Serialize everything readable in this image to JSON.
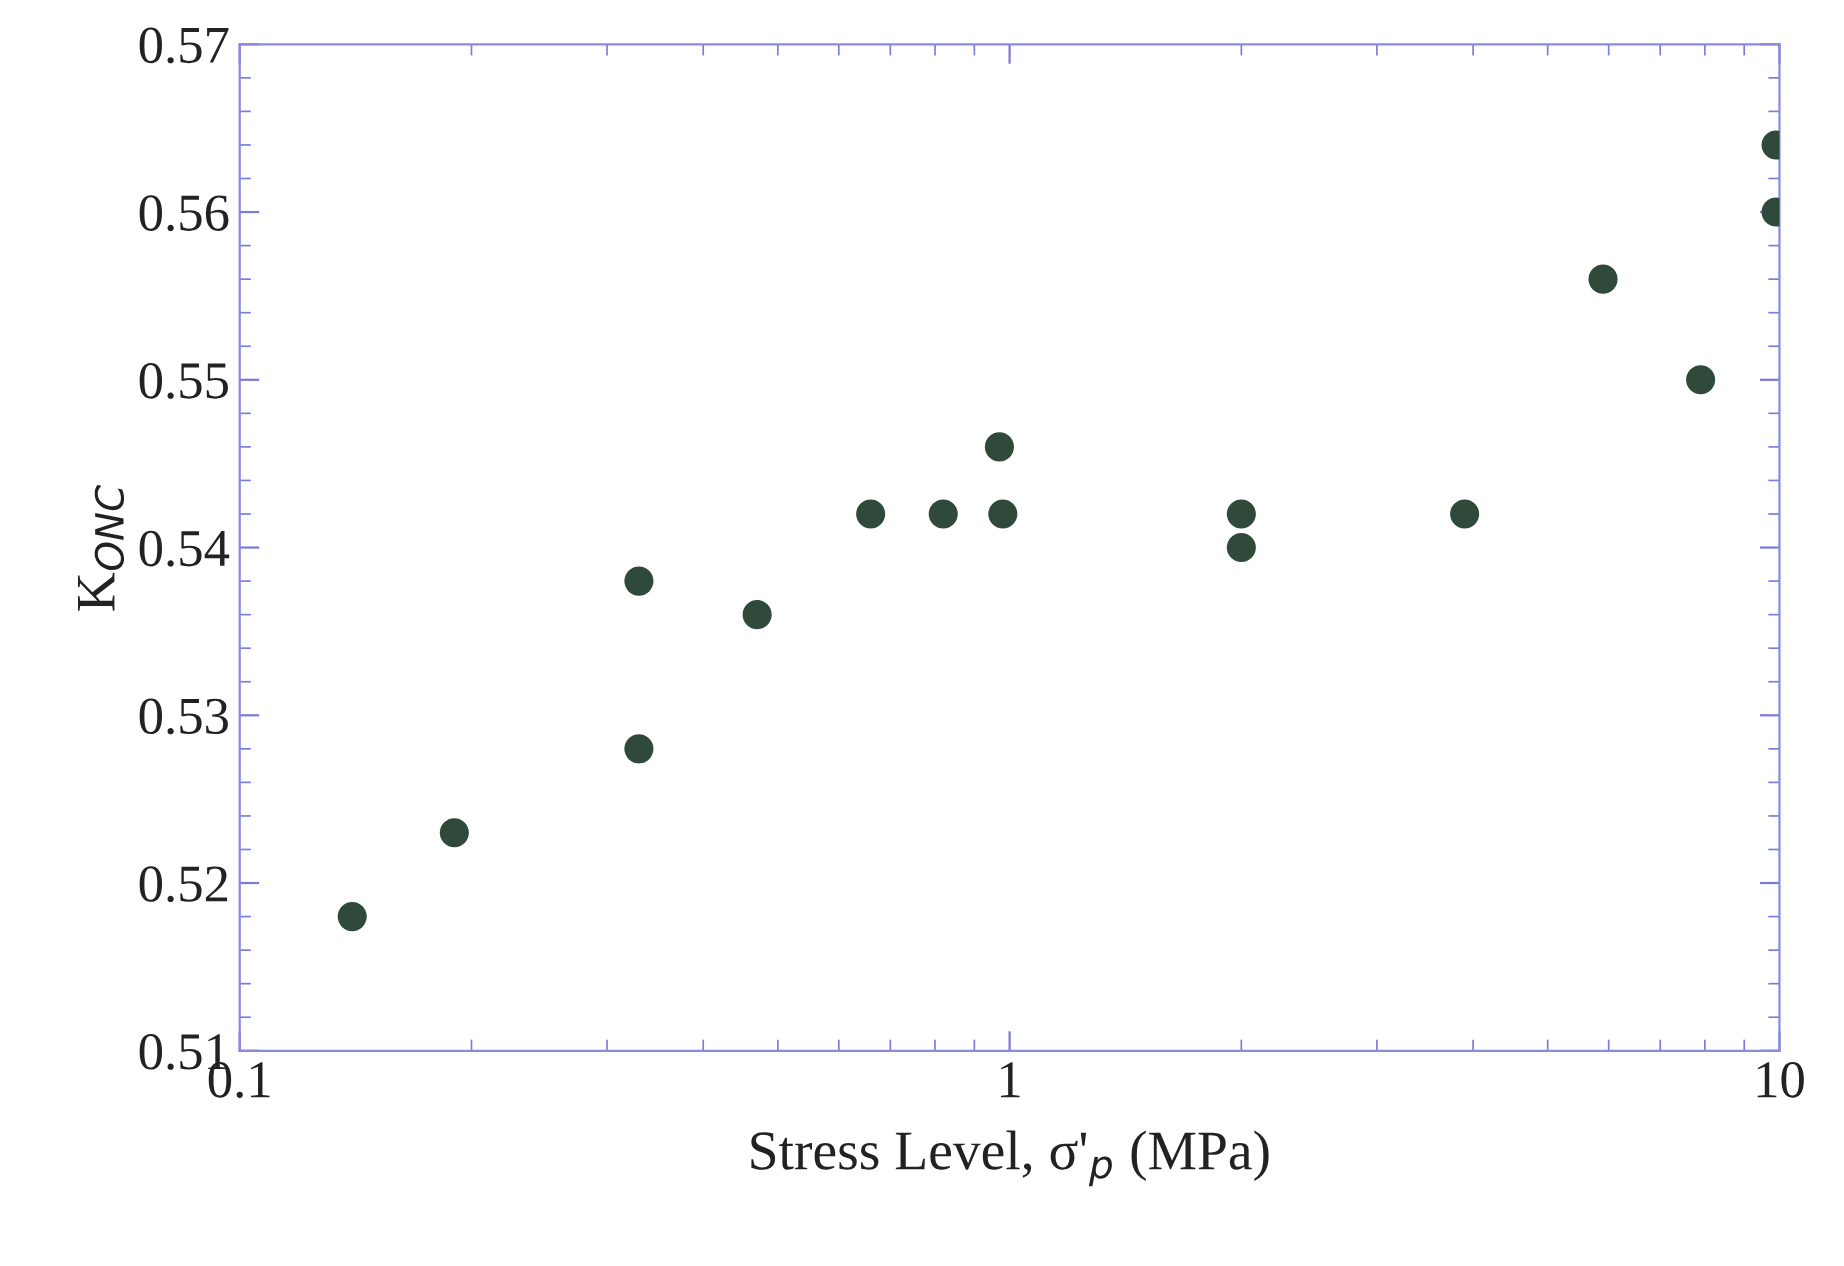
{
  "chart_data": {
    "type": "scatter",
    "xlabel": "Stress Level, σ'$_{p}$ (MPa)",
    "ylabel": "K$_{ONC}$",
    "log": "x",
    "xlim": [
      0.1,
      10
    ],
    "xticks": [
      0.1,
      1,
      10
    ],
    "ylim": [
      0.51,
      0.57
    ],
    "yticks": [
      0.51,
      0.52,
      0.53,
      0.54,
      0.55,
      0.56,
      0.57
    ],
    "grid": false,
    "legend": false,
    "marker": "circle",
    "series": [
      {
        "color": "#2f4a3a",
        "x": [
          0.14,
          0.19,
          0.33,
          0.33,
          0.47,
          0.66,
          0.82,
          0.97,
          0.98,
          2,
          2,
          3.9,
          5.9,
          7.9,
          9.9,
          9.9
        ],
        "values": [
          0.518,
          0.523,
          0.538,
          0.528,
          0.536,
          0.542,
          0.542,
          0.546,
          0.542,
          0.542,
          0.54,
          0.542,
          0.556,
          0.55,
          0.564,
          0.56
        ]
      }
    ]
  }
}
